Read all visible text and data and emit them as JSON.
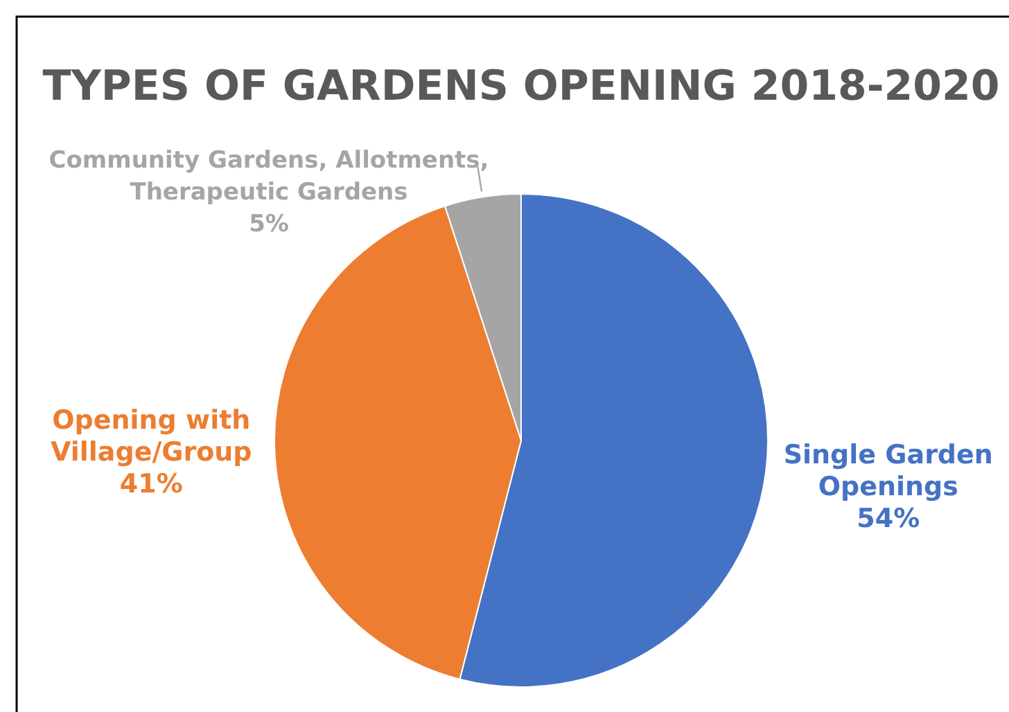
{
  "chart_data": {
    "type": "pie",
    "title": "TYPES OF GARDENS OPENING 2018-2020",
    "categories": [
      "Single Garden Openings",
      "Opening with Village/Group",
      "Community Gardens, Allotments, Therapeutic Gardens"
    ],
    "values": [
      54,
      41,
      5
    ],
    "colors": [
      "#4472c4",
      "#ed7d31",
      "#a5a5a5"
    ],
    "value_labels": [
      "54%",
      "41%",
      "5%"
    ]
  }
}
